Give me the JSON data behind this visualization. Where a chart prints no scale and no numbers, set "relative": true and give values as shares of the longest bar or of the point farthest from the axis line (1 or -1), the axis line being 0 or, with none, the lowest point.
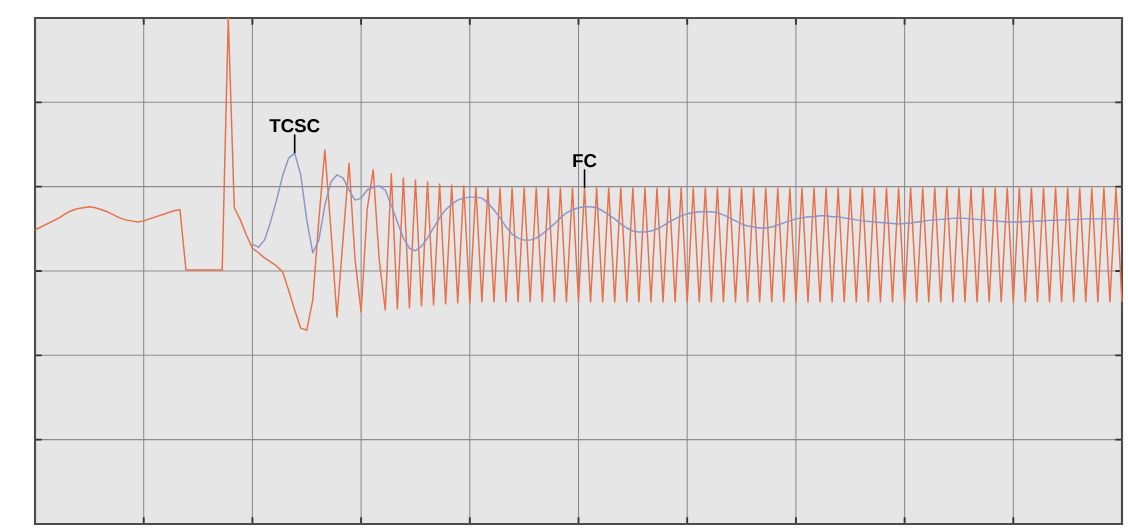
{
  "chart_data": {
    "type": "line",
    "relative": true,
    "grid": true,
    "categories": [
      null,
      null,
      null,
      null,
      null,
      null,
      null,
      null,
      null,
      null,
      null,
      null,
      null,
      null,
      null,
      null,
      null,
      null,
      null,
      null,
      null,
      null,
      null,
      null,
      null,
      null,
      null,
      null,
      null,
      null,
      null,
      null,
      null,
      null,
      null,
      null,
      null,
      null,
      null,
      null,
      null,
      null,
      null,
      null,
      null,
      null,
      null,
      null,
      null,
      null,
      null,
      null,
      null,
      null,
      null,
      null,
      null,
      null,
      null,
      null,
      null,
      null,
      null,
      null,
      null,
      null,
      null,
      null,
      null,
      null,
      null,
      null,
      null,
      null,
      null,
      null,
      null,
      null,
      null,
      null,
      null,
      null,
      null,
      null,
      null,
      null,
      null,
      null,
      null,
      null,
      null,
      null,
      null,
      null,
      null,
      null,
      null,
      null,
      null,
      null,
      null,
      null,
      null,
      null,
      null,
      null,
      null,
      null,
      null,
      null,
      null,
      null,
      null,
      null,
      null,
      null,
      null,
      null,
      null,
      null,
      null,
      null,
      null,
      null,
      null,
      null,
      null,
      null,
      null,
      null,
      null,
      null,
      null,
      null,
      null,
      null,
      null,
      null,
      null,
      null,
      null,
      null,
      null,
      null,
      null,
      null,
      null,
      null,
      null,
      null,
      null,
      null,
      null,
      null,
      null,
      null,
      null,
      null,
      null,
      null,
      null,
      null,
      null,
      null,
      null,
      null,
      null,
      null,
      null,
      null,
      null,
      null,
      null,
      null,
      null,
      null,
      null,
      null,
      null,
      null,
      null
    ],
    "series": [
      {
        "name": "FC",
        "color": "#e8704a",
        "values": [
          0.581,
          0.587,
          0.593,
          0.599,
          0.605,
          0.613,
          0.619,
          0.623,
          0.625,
          0.627,
          0.625,
          0.621,
          0.617,
          0.611,
          0.605,
          0.601,
          0.599,
          0.597,
          0.599,
          0.603,
          0.607,
          0.611,
          0.615,
          0.619,
          0.621,
          0.502,
          0.502,
          0.502,
          0.502,
          0.502,
          0.502,
          0.502,
          1.0,
          0.625,
          0.601,
          0.571,
          0.545,
          0.536,
          0.526,
          0.518,
          0.51,
          0.498,
          0.462,
          0.423,
          0.387,
          0.383,
          0.443,
          0.601,
          0.739,
          0.581,
          0.409,
          0.561,
          0.713,
          0.522,
          0.419,
          0.621,
          0.7,
          0.522,
          0.423,
          0.692,
          0.425,
          0.684,
          0.427,
          0.68,
          0.431,
          0.676,
          0.433,
          0.672,
          0.435,
          0.67,
          0.437,
          0.668,
          0.437,
          0.666,
          0.439,
          0.664,
          0.439,
          0.664,
          0.439,
          0.664,
          0.439,
          0.664,
          0.439,
          0.664,
          0.439,
          0.664,
          0.439,
          0.664,
          0.439,
          0.664,
          0.439,
          0.664,
          0.439,
          0.664,
          0.439,
          0.664,
          0.439,
          0.664,
          0.439,
          0.664,
          0.439,
          0.664,
          0.439,
          0.664,
          0.439,
          0.664,
          0.439,
          0.664,
          0.439,
          0.664,
          0.439,
          0.664,
          0.439,
          0.664,
          0.439,
          0.664,
          0.439,
          0.664,
          0.439,
          0.664,
          0.439,
          0.664,
          0.439,
          0.664,
          0.439,
          0.664,
          0.439,
          0.664,
          0.439,
          0.664,
          0.439,
          0.664,
          0.439,
          0.664,
          0.439,
          0.664,
          0.439,
          0.664,
          0.439,
          0.664,
          0.439,
          0.664,
          0.439,
          0.664,
          0.439,
          0.664,
          0.439,
          0.664,
          0.439,
          0.664,
          0.439,
          0.664,
          0.439,
          0.664,
          0.439,
          0.664,
          0.439,
          0.664,
          0.439,
          0.664,
          0.439,
          0.664,
          0.439,
          0.664,
          0.439,
          0.664,
          0.439,
          0.664,
          0.439,
          0.664,
          0.439,
          0.664,
          0.439,
          0.664,
          0.439,
          0.664,
          0.439,
          0.664,
          0.439,
          0.664,
          0.439
        ]
      },
      {
        "name": "TCSC",
        "color": "#8d95c8",
        "values": [
          null,
          null,
          null,
          null,
          null,
          null,
          null,
          null,
          null,
          null,
          null,
          null,
          null,
          null,
          null,
          null,
          null,
          null,
          null,
          null,
          null,
          null,
          null,
          null,
          null,
          null,
          null,
          null,
          null,
          null,
          null,
          null,
          null,
          null,
          null,
          null,
          0.553,
          0.547,
          0.561,
          0.597,
          0.64,
          0.688,
          0.723,
          0.733,
          0.69,
          0.601,
          0.536,
          0.561,
          0.63,
          0.676,
          0.69,
          0.684,
          0.66,
          0.64,
          0.644,
          0.66,
          0.666,
          0.668,
          0.66,
          0.63,
          0.597,
          0.565,
          0.545,
          0.54,
          0.549,
          0.565,
          0.585,
          0.605,
          0.621,
          0.632,
          0.64,
          0.644,
          0.646,
          0.646,
          0.644,
          0.634,
          0.621,
          0.605,
          0.587,
          0.573,
          0.565,
          0.561,
          0.561,
          0.565,
          0.573,
          0.583,
          0.593,
          0.605,
          0.615,
          0.621,
          0.625,
          0.627,
          0.627,
          0.625,
          0.619,
          0.611,
          0.603,
          0.593,
          0.585,
          0.579,
          0.577,
          0.577,
          0.579,
          0.583,
          0.589,
          0.597,
          0.603,
          0.609,
          0.613,
          0.615,
          0.617,
          0.617,
          0.617,
          0.615,
          0.611,
          0.605,
          0.599,
          0.593,
          0.589,
          0.587,
          0.585,
          0.585,
          0.587,
          0.591,
          0.595,
          0.599,
          0.603,
          0.605,
          0.607,
          0.607,
          0.609,
          0.609,
          0.607,
          0.607,
          0.605,
          0.603,
          0.601,
          0.599,
          0.598,
          0.597,
          0.596,
          0.595,
          0.594,
          0.593,
          0.594,
          0.595,
          0.597,
          0.598,
          0.6,
          0.601,
          0.602,
          0.603,
          0.604,
          0.605,
          0.604,
          0.603,
          0.602,
          0.601,
          0.6,
          0.599,
          0.598,
          0.597,
          0.597,
          0.597,
          0.598,
          0.598,
          0.599,
          0.599,
          0.6,
          0.6,
          0.601,
          0.601,
          0.602,
          0.602,
          0.603,
          0.603,
          0.603,
          0.603,
          0.603,
          0.603,
          0.603
        ]
      }
    ]
  }
}
